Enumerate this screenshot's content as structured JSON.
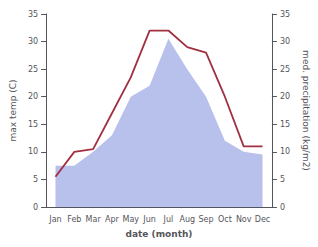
{
  "chart_data": {
    "type": "line",
    "categories": [
      "Jan",
      "Feb",
      "Mar",
      "Apr",
      "May",
      "Jun",
      "Jul",
      "Aug",
      "Sep",
      "Oct",
      "Nov",
      "Dec"
    ],
    "xlabel": "date (month)",
    "ylabel": "max temp (C)",
    "y2label": "med. precipitation (kg/m2)",
    "series": [
      {
        "type": "area",
        "color": "#b8c0ec",
        "axis": "y2",
        "values": [
          7.5,
          7.5,
          10.0,
          13.0,
          20.0,
          22.0,
          30.5,
          25.0,
          20.0,
          12.0,
          10.0,
          9.5
        ]
      },
      {
        "type": "line",
        "color": "#a03040",
        "values": [
          5.5,
          10.0,
          10.5,
          17.0,
          23.5,
          32.0,
          32.0,
          29.0,
          28.0,
          20.0,
          11.0,
          11.0
        ]
      }
    ],
    "ylim": [
      0,
      35
    ],
    "yticks": [
      0,
      5,
      10,
      15,
      20,
      25,
      30,
      35
    ],
    "y2lim": [
      0,
      35
    ],
    "y2ticks": [
      0,
      5,
      10,
      15,
      20,
      25,
      30,
      35
    ],
    "grid": false
  }
}
